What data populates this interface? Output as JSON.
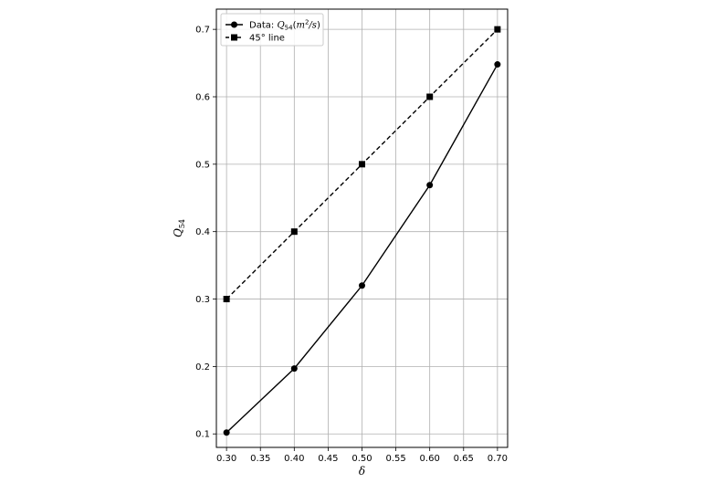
{
  "chart_data": {
    "type": "line",
    "x": [
      0.3,
      0.4,
      0.5,
      0.6,
      0.7
    ],
    "series": [
      {
        "name": "Data: Q54(m2/s)",
        "values": [
          0.102,
          0.197,
          0.32,
          0.469,
          0.648
        ],
        "marker": "circle",
        "linestyle": "solid",
        "color": "#000000"
      },
      {
        "name": "45° line",
        "values": [
          0.3,
          0.4,
          0.5,
          0.6,
          0.7
        ],
        "marker": "square",
        "linestyle": "dashed",
        "color": "#000000"
      }
    ],
    "xlabel": "δ",
    "ylabel": "Q54",
    "xlim": [
      0.285,
      0.715
    ],
    "ylim": [
      0.08,
      0.73
    ],
    "xticks": [
      "0.30",
      "0.35",
      "0.40",
      "0.45",
      "0.50",
      "0.55",
      "0.60",
      "0.65",
      "0.70"
    ],
    "yticks": [
      "0.1",
      "0.2",
      "0.3",
      "0.4",
      "0.5",
      "0.6",
      "0.7"
    ],
    "grid": true,
    "legend_position": "top-left"
  }
}
